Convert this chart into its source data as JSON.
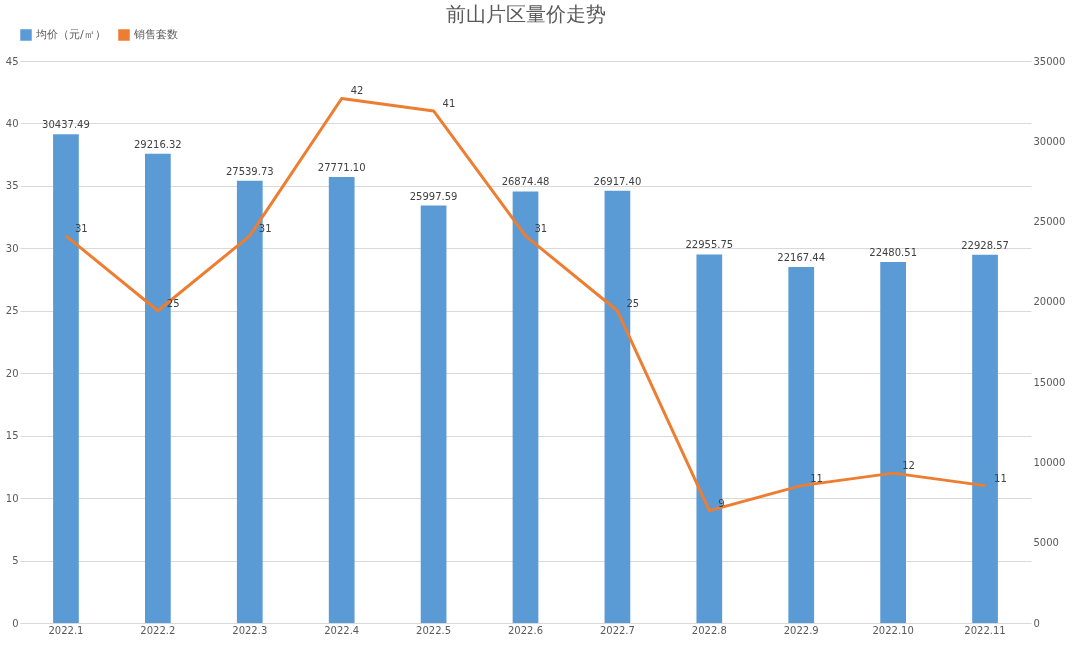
{
  "chart_data": {
    "type": "bar",
    "title": "前山片区量价走势",
    "categories": [
      "2022.1",
      "2022.2",
      "2022.3",
      "2022.4",
      "2022.5",
      "2022.6",
      "2022.7",
      "2022.8",
      "2022.9",
      "2022.10",
      "2022.11"
    ],
    "series": [
      {
        "name": "均价（元/㎡）",
        "axis": "y2",
        "color": "#5b9bd5",
        "values": [
          30437.49,
          29216.32,
          27539.73,
          27771.1,
          25997.59,
          26874.48,
          26917.4,
          22955.75,
          22167.44,
          22480.51,
          22928.57
        ],
        "value_labels": [
          "30437.49",
          "29216.32",
          "27539.73",
          "27771.10",
          "25997.59",
          "26874.48",
          "26917.40",
          "22955.75",
          "22167.44",
          "22480.51",
          "22928.57"
        ]
      },
      {
        "name": "销售套数",
        "type": "line",
        "axis": "y",
        "color": "#ed7d31",
        "values": [
          31,
          25,
          31,
          42,
          41,
          31,
          25,
          9,
          11,
          12,
          11
        ]
      }
    ],
    "ylim": [
      0,
      45
    ],
    "yticks": [
      0,
      5,
      10,
      15,
      20,
      25,
      30,
      35,
      40,
      45
    ],
    "y2lim": [
      0,
      35000
    ],
    "y2ticks": [
      0,
      5000,
      10000,
      15000,
      20000,
      25000,
      30000,
      35000
    ],
    "data_labels": true,
    "grid": "y",
    "legend": "top",
    "marker": "none",
    "line_style": "solid"
  }
}
